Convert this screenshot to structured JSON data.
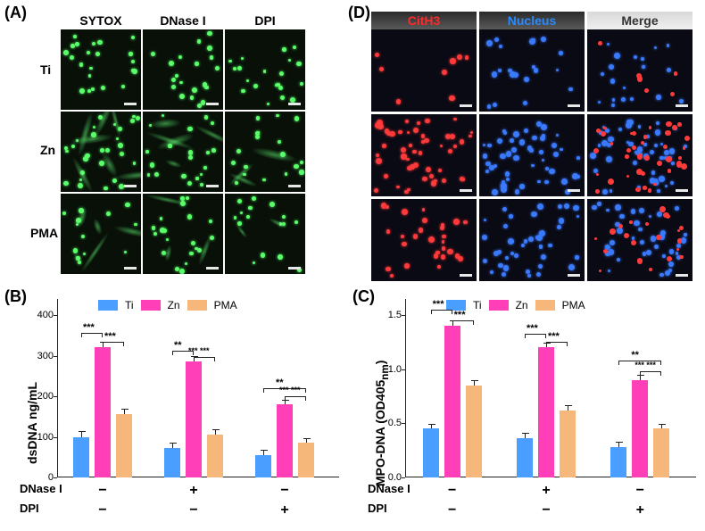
{
  "panels": {
    "A": {
      "label": "(A)"
    },
    "B": {
      "label": "(B)"
    },
    "C": {
      "label": "(C)"
    },
    "D": {
      "label": "(D)"
    }
  },
  "panelA": {
    "cols": [
      "SYTOX",
      "DNase I",
      "DPI"
    ],
    "rows": [
      "Ti",
      "Zn",
      "PMA"
    ],
    "dot_color": "#5aff6a",
    "bg": "#081008"
  },
  "panelD": {
    "cols": [
      {
        "label": "CitH3",
        "class": "ch-red"
      },
      {
        "label": "Nucleus",
        "class": "ch-blue"
      },
      {
        "label": "Merge",
        "class": "ch-grey"
      }
    ],
    "red": "#ff3a3a",
    "blue": "#3a7aff",
    "bg": "#0a0a14"
  },
  "chartB": {
    "type": "bar",
    "ylabel": "dsDNA ng/mL",
    "ylim": [
      0,
      400
    ],
    "ytick_step": 100,
    "groups": [
      {
        "Ti": 100,
        "Zn": 320,
        "PMA": 155,
        "err": 12
      },
      {
        "Ti": 72,
        "Zn": 285,
        "PMA": 105,
        "err": 12
      },
      {
        "Ti": 55,
        "Zn": 180,
        "PMA": 85,
        "err": 10
      }
    ],
    "colors": {
      "Ti": "#4a9eff",
      "Zn": "#ff3fb8",
      "PMA": "#f5b77a"
    },
    "treatments": {
      "DNase I": [
        "−",
        "+",
        "−"
      ],
      "DPI": [
        "−",
        "−",
        "+"
      ]
    },
    "sig": [
      {
        "g": 0,
        "from": 0,
        "to": 1,
        "y": 355,
        "t": "***"
      },
      {
        "g": 0,
        "from": 1,
        "to": 2,
        "y": 335,
        "t": "***"
      },
      {
        "g": 1,
        "from": 0,
        "to": 1,
        "y": 312,
        "t": "**"
      },
      {
        "g": 1,
        "from": 1,
        "to": 2,
        "y": 296,
        "t": "*** ***",
        "split": true
      },
      {
        "g": 2,
        "from": 0,
        "to": 2,
        "y": 220,
        "t": "**"
      },
      {
        "g": 2,
        "from": 1,
        "to": 2,
        "y": 200,
        "t": "*** ***",
        "split": true
      }
    ]
  },
  "chartC": {
    "type": "bar",
    "ylabel": "MPO-DNA (OD405nm)",
    "ylabel_plain": "MPO-DNA (OD405",
    "ylabel_sub": "nm",
    "ylabel_end": ")",
    "ylim": [
      0,
      1.5
    ],
    "ytick_step": 0.5,
    "groups": [
      {
        "Ti": 0.45,
        "Zn": 1.4,
        "PMA": 0.85,
        "err": 0.04
      },
      {
        "Ti": 0.36,
        "Zn": 1.2,
        "PMA": 0.62,
        "err": 0.04
      },
      {
        "Ti": 0.28,
        "Zn": 0.9,
        "PMA": 0.45,
        "err": 0.04
      }
    ],
    "colors": {
      "Ti": "#4a9eff",
      "Zn": "#ff3fb8",
      "PMA": "#f5b77a"
    },
    "treatments": {
      "DNase I": [
        "−",
        "+",
        "−"
      ],
      "DPI": [
        "−",
        "−",
        "+"
      ]
    },
    "sig": [
      {
        "g": 0,
        "from": 0,
        "to": 1,
        "y": 1.55,
        "t": "***"
      },
      {
        "g": 0,
        "from": 1,
        "to": 2,
        "y": 1.45,
        "t": "***"
      },
      {
        "g": 1,
        "from": 0,
        "to": 1,
        "y": 1.33,
        "t": "***"
      },
      {
        "g": 1,
        "from": 1,
        "to": 2,
        "y": 1.25,
        "t": "***"
      },
      {
        "g": 2,
        "from": 0,
        "to": 2,
        "y": 1.08,
        "t": "**"
      },
      {
        "g": 2,
        "from": 1,
        "to": 2,
        "y": 0.98,
        "t": "*** ***",
        "split": true
      }
    ]
  },
  "legend": [
    "Ti",
    "Zn",
    "PMA"
  ]
}
